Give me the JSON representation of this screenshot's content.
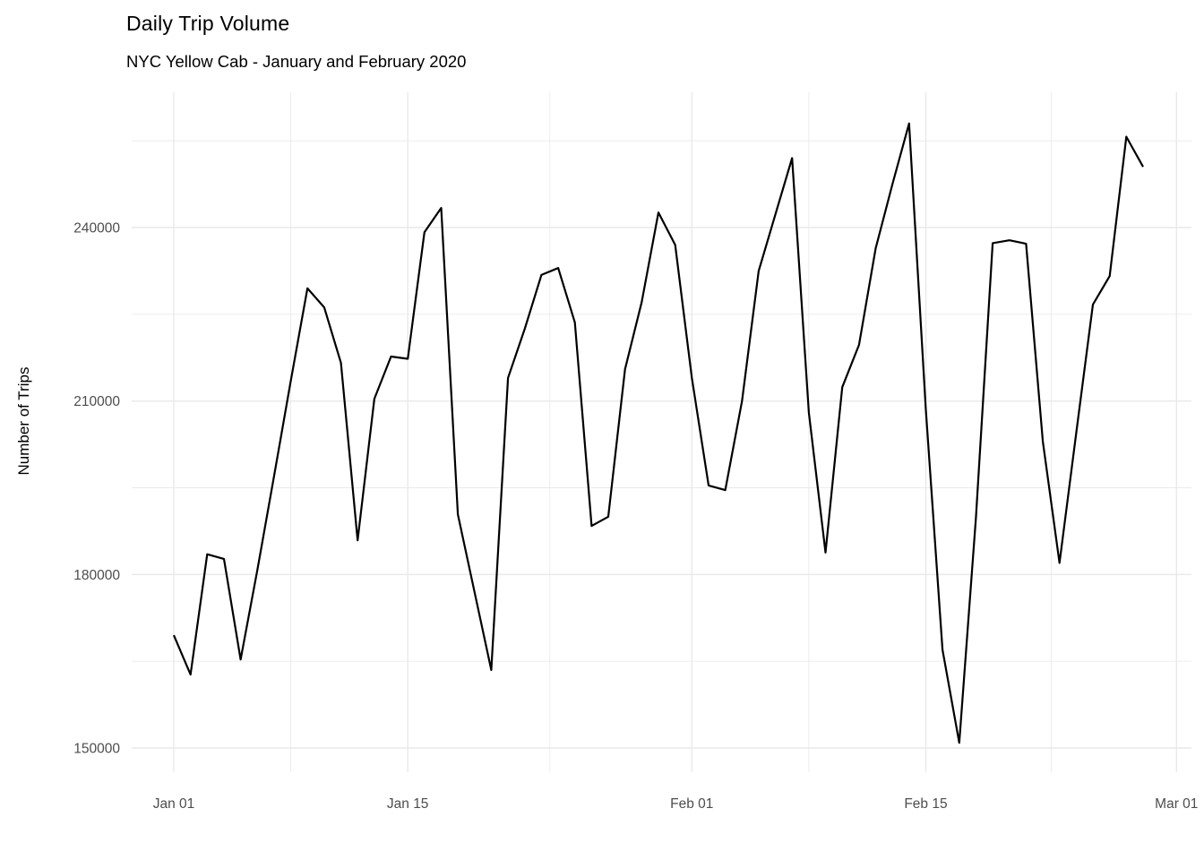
{
  "chart": {
    "title": "Daily Trip Volume",
    "subtitle": "NYC Yellow Cab - January and February 2020",
    "ylabel": "Number of Trips"
  },
  "chart_data": {
    "type": "line",
    "title": "Daily Trip Volume",
    "subtitle": "NYC Yellow Cab - January and February 2020",
    "xlabel": "",
    "ylabel": "Number of Trips",
    "grid": true,
    "legend": false,
    "line_color": "#000000",
    "background_color": "#ffffff",
    "gridline_color": "#e9e9e9",
    "tick_label_color": "#4d4d4d",
    "x_axis": {
      "tick_labels": [
        "Jan 01",
        "Jan 15",
        "Feb 01",
        "Feb 15",
        "Mar 01"
      ],
      "tick_day_offsets": [
        0,
        14,
        31,
        45,
        60
      ],
      "minor_day_offsets": [
        7,
        22.5,
        38,
        52.5
      ]
    },
    "y_axis": {
      "tick_labels": [
        "150000",
        "180000",
        "210000",
        "240000"
      ],
      "tick_values": [
        150000,
        180000,
        210000,
        240000
      ],
      "minor_values": [
        165000,
        195000,
        225000,
        255000
      ],
      "ylim": [
        145800,
        263400
      ]
    },
    "dates": [
      "Jan 01",
      "Jan 02",
      "Jan 03",
      "Jan 04",
      "Jan 05",
      "Jan 06",
      "Jan 07",
      "Jan 08",
      "Jan 09",
      "Jan 10",
      "Jan 11",
      "Jan 12",
      "Jan 13",
      "Jan 14",
      "Jan 15",
      "Jan 16",
      "Jan 17",
      "Jan 18",
      "Jan 19",
      "Jan 20",
      "Jan 21",
      "Jan 22",
      "Jan 23",
      "Jan 24",
      "Jan 25",
      "Jan 26",
      "Jan 27",
      "Jan 28",
      "Jan 29",
      "Jan 30",
      "Jan 31",
      "Feb 01",
      "Feb 02",
      "Feb 03",
      "Feb 04",
      "Feb 05",
      "Feb 06",
      "Feb 07",
      "Feb 08",
      "Feb 09",
      "Feb 10",
      "Feb 11",
      "Feb 12",
      "Feb 13",
      "Feb 14",
      "Feb 15",
      "Feb 16",
      "Feb 17",
      "Feb 18",
      "Feb 19",
      "Feb 20",
      "Feb 21",
      "Feb 22",
      "Feb 23",
      "Feb 24",
      "Feb 25",
      "Feb 26",
      "Feb 27",
      "Feb 28"
    ],
    "values": [
      169500,
      162700,
      183500,
      182700,
      165300,
      180800,
      197000,
      213500,
      229500,
      226200,
      216600,
      185900,
      210400,
      217700,
      217300,
      239200,
      243400,
      190400,
      176900,
      163500,
      214000,
      222500,
      231800,
      233000,
      223600,
      188400,
      190000,
      215500,
      227100,
      242600,
      237000,
      214000,
      195400,
      194600,
      210000,
      232500,
      242300,
      252000,
      208000,
      183800,
      212400,
      219700,
      236400,
      247500,
      258000,
      208500,
      167000,
      150900,
      189800,
      237300,
      237800,
      237200,
      203000,
      182000,
      204500,
      226700,
      231600,
      255700,
      250500
    ]
  }
}
